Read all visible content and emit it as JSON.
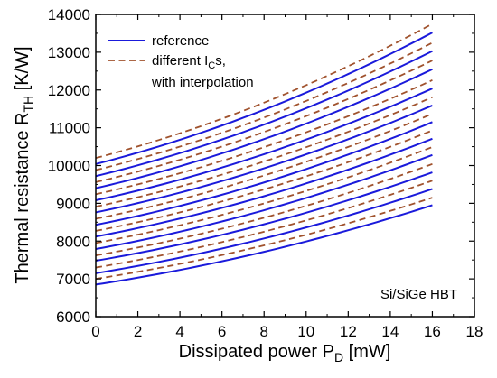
{
  "chart_data": {
    "type": "line",
    "xlabel": "Dissipated power P",
    "xlabel_sub": "D",
    "xlabel_unit": " [mW]",
    "ylabel": "Thermal resistance R",
    "ylabel_sub": "TH",
    "ylabel_unit": " [K/W]",
    "xlim": [
      0,
      18
    ],
    "ylim": [
      6000,
      14000
    ],
    "x_ticks": [
      0,
      2,
      4,
      6,
      8,
      10,
      12,
      14,
      16,
      18
    ],
    "x_tick_labels": [
      "0",
      "2",
      "4",
      "6",
      "8",
      "10",
      "12",
      "14",
      "16",
      "18"
    ],
    "y_ticks": [
      6000,
      7000,
      8000,
      9000,
      10000,
      11000,
      12000,
      13000,
      14000
    ],
    "y_tick_labels": [
      "6000",
      "7000",
      "8000",
      "9000",
      "10000",
      "11000",
      "12000",
      "13000",
      "14000"
    ],
    "grid": false,
    "legend_position": "top-left",
    "annotation": "Si/SiGe HBT",
    "legend": [
      {
        "name": "reference",
        "style": "solid",
        "color": "#1a1adb"
      },
      {
        "name": "different I",
        "name_sub": "C",
        "name_suffix": "s,",
        "name_line2": "with interpolation",
        "style": "dashed",
        "color": "#a0522d"
      }
    ],
    "x": [
      0,
      16
    ],
    "curve_shape": "convex",
    "curvature": 0.35,
    "series": [
      {
        "group": "reference",
        "values": [
          6850,
          8950
        ]
      },
      {
        "group": "interpolation",
        "values": [
          7000,
          9150
        ]
      },
      {
        "group": "reference",
        "values": [
          7150,
          9380
        ]
      },
      {
        "group": "interpolation",
        "values": [
          7300,
          9600
        ]
      },
      {
        "group": "reference",
        "values": [
          7480,
          9820
        ]
      },
      {
        "group": "interpolation",
        "values": [
          7620,
          10040
        ]
      },
      {
        "group": "reference",
        "values": [
          7790,
          10280
        ]
      },
      {
        "group": "interpolation",
        "values": [
          7950,
          10490
        ]
      },
      {
        "group": "reference",
        "values": [
          8120,
          10710
        ]
      },
      {
        "group": "interpolation",
        "values": [
          8270,
          10930
        ]
      },
      {
        "group": "reference",
        "values": [
          8430,
          11150
        ]
      },
      {
        "group": "interpolation",
        "values": [
          8590,
          11370
        ]
      },
      {
        "group": "reference",
        "values": [
          8760,
          11590
        ]
      },
      {
        "group": "interpolation",
        "values": [
          8910,
          11810
        ]
      },
      {
        "group": "reference",
        "values": [
          9080,
          12040
        ]
      },
      {
        "group": "interpolation",
        "values": [
          9240,
          12260
        ]
      },
      {
        "group": "reference",
        "values": [
          9400,
          12550
        ]
      },
      {
        "group": "interpolation",
        "values": [
          9560,
          12780
        ]
      },
      {
        "group": "reference",
        "values": [
          9720,
          13030
        ]
      },
      {
        "group": "interpolation",
        "values": [
          9880,
          13250
        ]
      },
      {
        "group": "reference",
        "values": [
          10040,
          13520
        ]
      },
      {
        "group": "interpolation",
        "values": [
          10200,
          13750
        ]
      }
    ]
  }
}
